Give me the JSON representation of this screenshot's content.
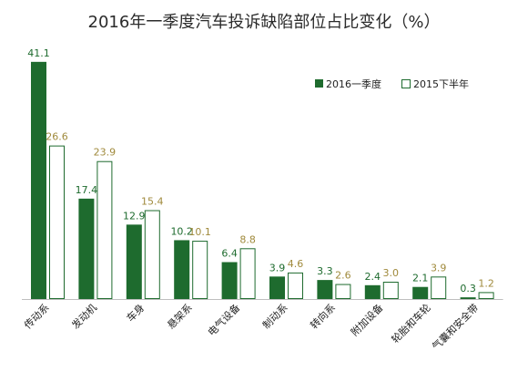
{
  "chart_data": {
    "type": "bar",
    "title": "2016年一季度汽车投诉缺陷部位占比变化（%）",
    "xlabel": "",
    "ylabel": "",
    "ylim": [
      0,
      45
    ],
    "grid": false,
    "legend_position": "top-right",
    "categories": [
      "传动系",
      "发动机",
      "车身",
      "悬架系",
      "电气设备",
      "制动系",
      "转向系",
      "附加设备",
      "轮胎和车轮",
      "气囊和安全带"
    ],
    "series": [
      {
        "name": "2016一季度",
        "color": "#1e6b2e",
        "label_color": "#1e6b2e",
        "values": [
          41.1,
          17.4,
          12.9,
          10.2,
          6.4,
          3.9,
          3.3,
          2.4,
          2.1,
          0.3
        ]
      },
      {
        "name": "2015下半年",
        "color": "#ffffff",
        "edge_color": "#1e6b2e",
        "label_color": "#a08a3c",
        "values": [
          26.6,
          23.9,
          15.4,
          10.1,
          8.8,
          4.6,
          2.6,
          3.0,
          3.9,
          1.2
        ]
      }
    ]
  }
}
